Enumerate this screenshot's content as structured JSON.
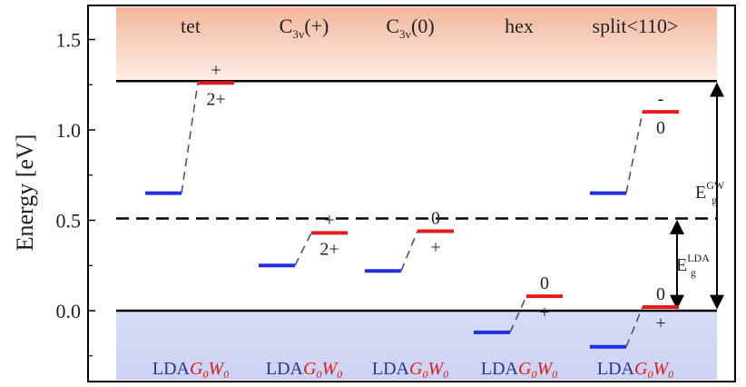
{
  "chart_data": {
    "type": "level-diagram",
    "ylabel": "Energy [eV]",
    "ylim": [
      -0.27,
      1.67
    ],
    "yticks": [
      "0.0",
      "0.5",
      "1.0",
      "1.5"
    ],
    "band_edges": {
      "vbm": 0.0,
      "cbm_lda": 0.51,
      "cbm_gw": 1.27
    },
    "gap_labels": {
      "gw": {
        "base": "E",
        "sub": "g",
        "sup": "GW"
      },
      "lda": {
        "base": "E",
        "sub": "g",
        "sup": "LDA"
      }
    },
    "configurations": [
      {
        "name": "tet",
        "sub": "",
        "suffix": "",
        "lda": 0.65,
        "gw": 1.26,
        "label_above": "+",
        "label_below": "2+"
      },
      {
        "name": "C",
        "sub": "3v",
        "suffix": "(+)",
        "lda": 0.25,
        "gw": 0.43,
        "label_above": "+",
        "label_below": "2+"
      },
      {
        "name": "C",
        "sub": "3v",
        "suffix": "(0)",
        "lda": 0.22,
        "gw": 0.44,
        "label_above": "0",
        "label_below": "+"
      },
      {
        "name": "hex",
        "sub": "",
        "suffix": "",
        "lda": -0.12,
        "gw": 0.08,
        "label_above": "0",
        "label_below": "+"
      },
      {
        "name": "split<110>",
        "sub": "",
        "suffix": "",
        "lda": -0.2,
        "gw": 0.02,
        "label_above": "0",
        "label_below": "+",
        "label_above2": "-",
        "label_below2": "0",
        "lda2": 0.65,
        "gw2": 1.1
      }
    ],
    "method_labels": {
      "lda": "LDA",
      "gw_base1": "G",
      "gw_sub1": "0",
      "gw_base2": "W",
      "gw_sub2": "0"
    },
    "colors": {
      "lda": "#1f2fe0",
      "gw": "#e51a1a",
      "frame": "#000000",
      "conduction_top": "#f4b79c",
      "conduction_bottom": "#fcefe8",
      "valence_top": "#d6dcf6",
      "valence_bottom": "#ccd3f2",
      "lda_text": "#2a3190",
      "gw_text": "#e51a1a"
    }
  }
}
